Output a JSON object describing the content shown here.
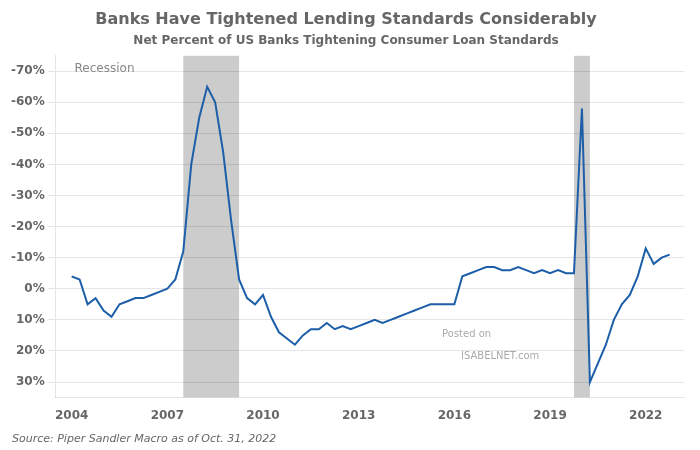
{
  "chart_data": {
    "type": "line",
    "title": "Banks Have Tightened Lending Standards Considerably",
    "subtitle": "Net Percent of US Banks Tightening Consumer Loan Standards",
    "source": "Source: Piper Sandler Macro as of Oct. 31, 2022",
    "annotations": [
      "Posted on",
      "ISABELNET.com"
    ],
    "bands": {
      "ranges": [
        [
          2007.5,
          2009.25
        ],
        [
          2019.75,
          2020.25
        ]
      ],
      "label": "Recession",
      "color": "#cccccc"
    },
    "x": [
      2004.0,
      2004.25,
      2004.5,
      2004.75,
      2005.0,
      2005.25,
      2005.5,
      2005.75,
      2006.0,
      2006.25,
      2006.5,
      2006.75,
      2007.0,
      2007.25,
      2007.5,
      2007.75,
      2008.0,
      2008.25,
      2008.5,
      2008.75,
      2009.0,
      2009.25,
      2009.5,
      2009.75,
      2010.0,
      2010.25,
      2010.5,
      2010.75,
      2011.0,
      2011.25,
      2011.5,
      2011.75,
      2012.0,
      2012.25,
      2012.5,
      2012.75,
      2013.0,
      2013.25,
      2013.5,
      2013.75,
      2014.0,
      2014.25,
      2014.5,
      2014.75,
      2015.0,
      2015.25,
      2015.5,
      2015.75,
      2016.0,
      2016.25,
      2016.5,
      2016.75,
      2017.0,
      2017.25,
      2017.5,
      2017.75,
      2018.0,
      2018.25,
      2018.5,
      2018.75,
      2019.0,
      2019.25,
      2019.5,
      2019.75,
      2020.0,
      2020.25,
      2020.5,
      2020.75,
      2021.0,
      2021.25,
      2021.5,
      2021.75,
      2022.0,
      2022.25,
      2022.5,
      2022.75
    ],
    "series": [
      {
        "color": "#1c5ea8",
        "values": [
          -4,
          -3,
          5,
          3,
          7,
          9,
          5,
          4,
          3,
          3,
          2,
          1,
          0,
          -3,
          -12,
          -40,
          -55,
          -65,
          -60,
          -44,
          -22,
          -3,
          3,
          5,
          2,
          9,
          14,
          16,
          18,
          15,
          13,
          13,
          11,
          13,
          12,
          13,
          12,
          11,
          10,
          11,
          10,
          9,
          8,
          7,
          6,
          5,
          5,
          5,
          5,
          -4,
          -5,
          -6,
          -7,
          -7,
          -6,
          -6,
          -7,
          -6,
          -5,
          -6,
          -5,
          -6,
          -5,
          -5,
          -58,
          30,
          24,
          18,
          10,
          5,
          2,
          -4,
          -13,
          -8,
          -10,
          -11
        ]
      }
    ],
    "xlim": [
      2003.5,
      2023.2
    ],
    "xticks": [
      2004,
      2007,
      2010,
      2013,
      2016,
      2019,
      2022
    ],
    "ylim": [
      35,
      -75
    ],
    "yticks": [
      {
        "value": -70,
        "label": "-70%"
      },
      {
        "value": -60,
        "label": "-60%"
      },
      {
        "value": -50,
        "label": "-50%"
      },
      {
        "value": -40,
        "label": "-40%"
      },
      {
        "value": -30,
        "label": "-30%"
      },
      {
        "value": -20,
        "label": "-20%"
      },
      {
        "value": -10,
        "label": "-10%"
      },
      {
        "value": 0,
        "label": "0%"
      },
      {
        "value": 10,
        "label": "10%"
      },
      {
        "value": 20,
        "label": "20%"
      },
      {
        "value": 30,
        "label": "30%"
      }
    ],
    "grid": "y"
  }
}
